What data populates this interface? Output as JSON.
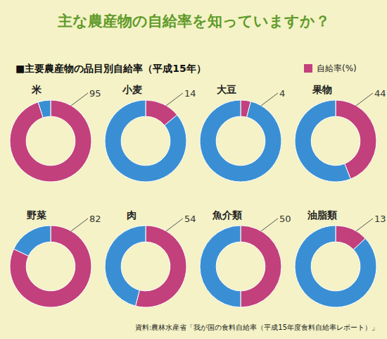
{
  "chart_data": {
    "type": "pie",
    "title": "主な農産物の自給率を知っていますか？",
    "subtitle": "■主要農産物の品目別自給率（平成15年）",
    "source": "資料:農林水産省「我が国の食料自給率（平成15年度食料自給率レポート）」",
    "categories": [
      "米",
      "小麦",
      "大豆",
      "果物",
      "野菜",
      "肉",
      "魚介類",
      "油脂類"
    ],
    "series": [
      {
        "name": "自給率(%)",
        "color": "#c2407c",
        "values": [
          95,
          14,
          4,
          44,
          82,
          54,
          50,
          13
        ]
      }
    ],
    "ylim": [
      0,
      100
    ],
    "data_labels": true,
    "legend": "top right"
  }
}
